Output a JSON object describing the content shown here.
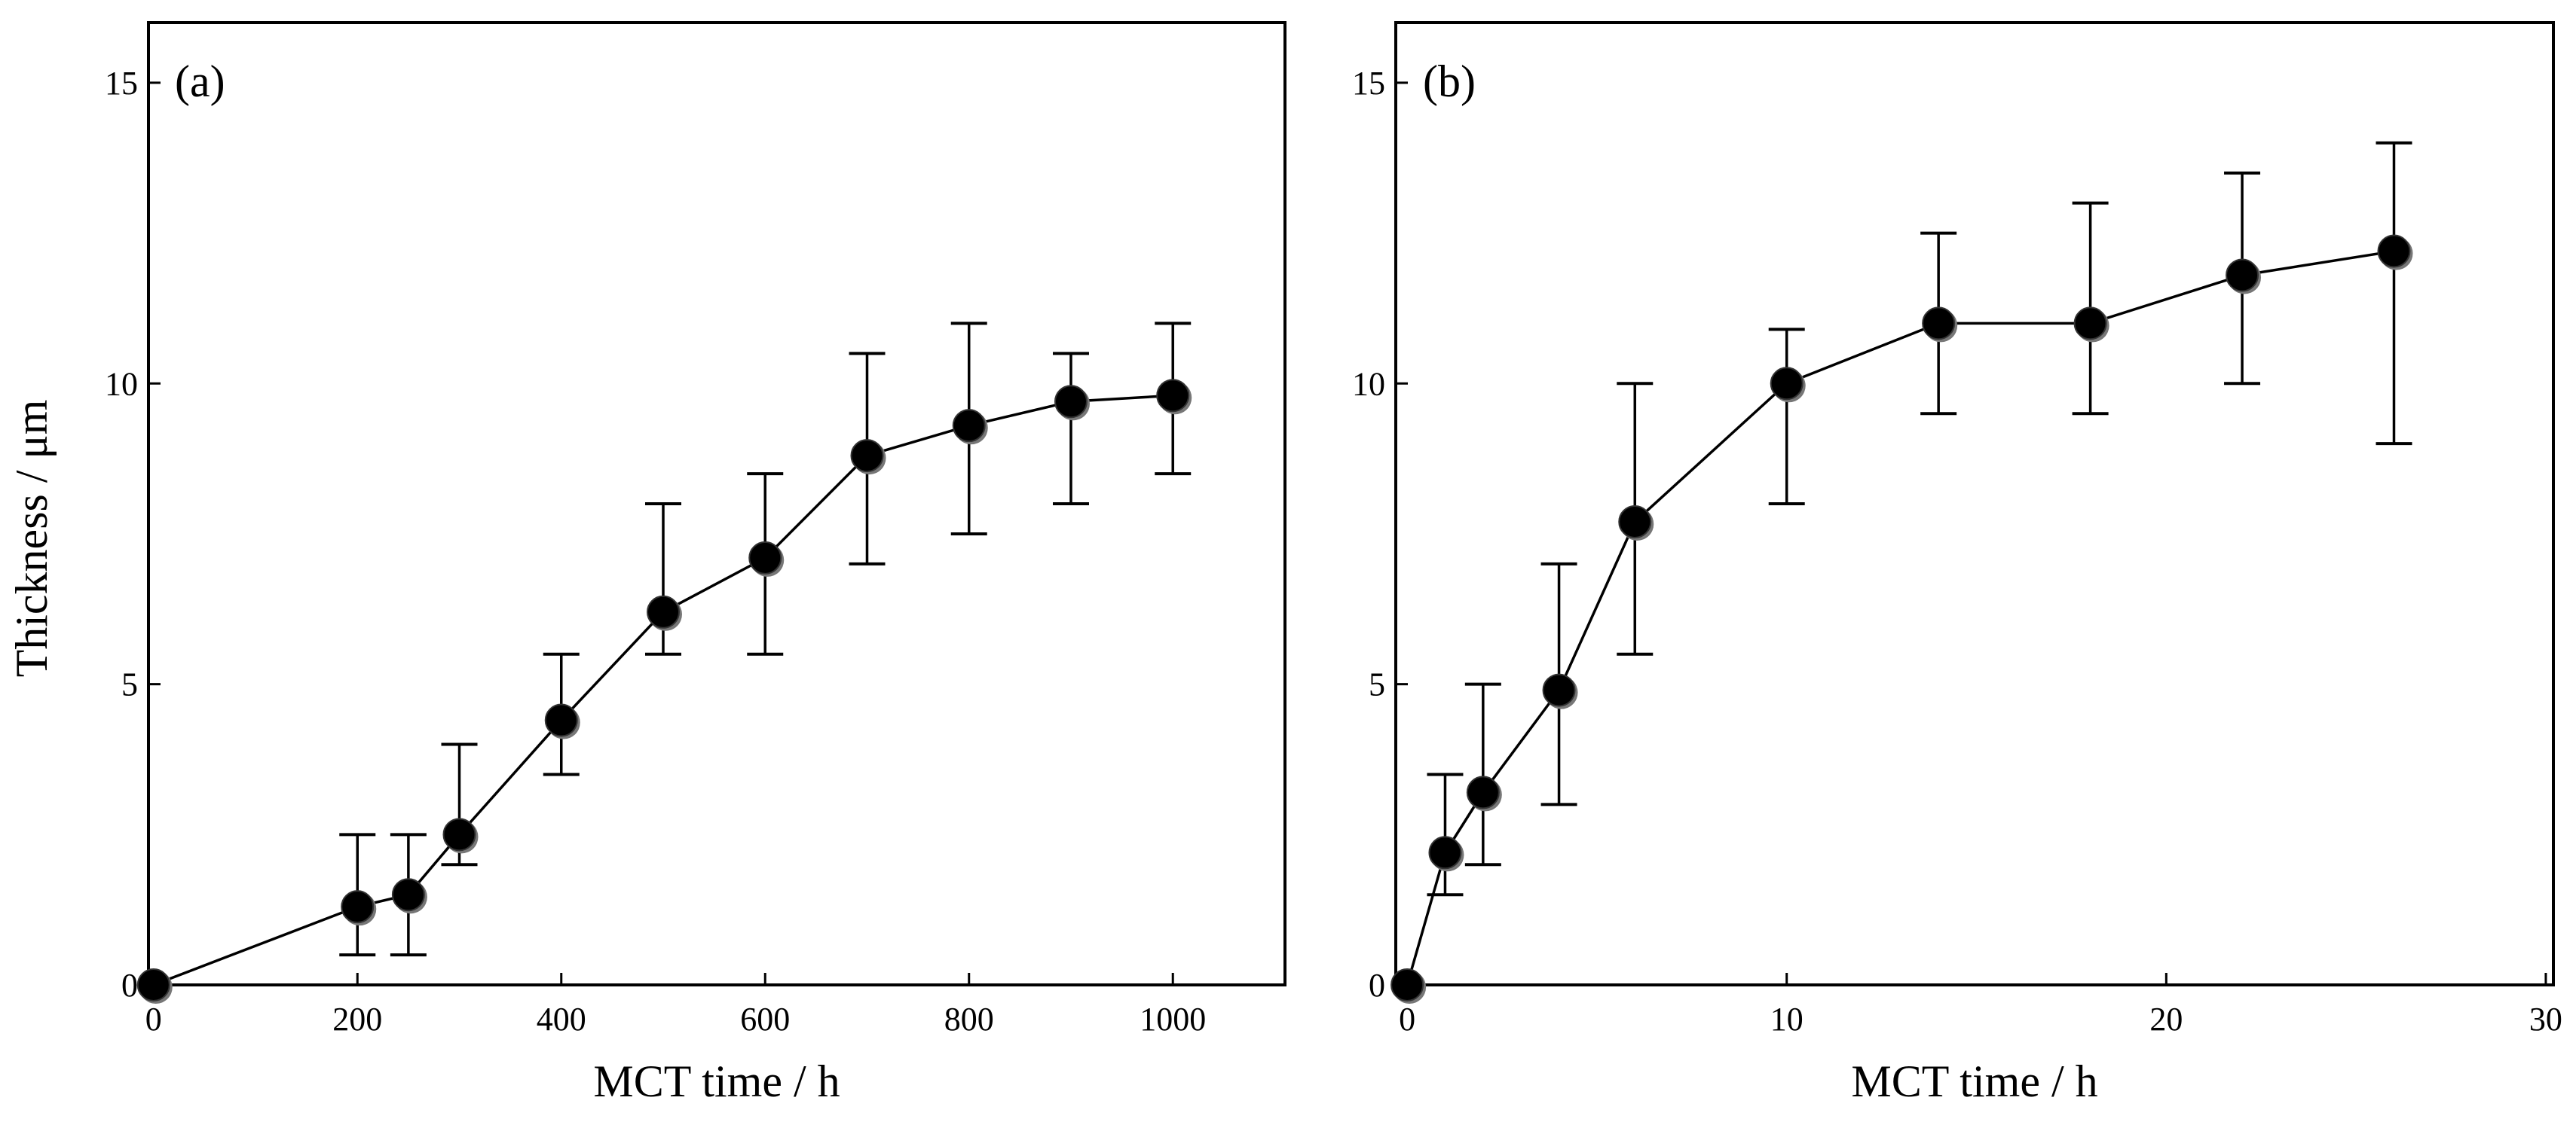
{
  "figure": {
    "ylabel": "Thickness / μm"
  },
  "chart_data": [
    {
      "type": "line",
      "panel_label": "(a)",
      "xlabel": "MCT time / h",
      "ylabel": "Thickness / μm",
      "xlim": [
        -5,
        1110
      ],
      "ylim": [
        0,
        16
      ],
      "xticks": [
        0,
        200,
        400,
        600,
        800,
        1000
      ],
      "yticks": [
        0,
        5,
        10,
        15
      ],
      "xtick_labels": [
        "0",
        "200",
        "400",
        "600",
        "800",
        "1000"
      ],
      "ytick_labels": [
        "0",
        "5",
        "10",
        "15"
      ],
      "grid": false,
      "series": [
        {
          "name": "Thickness",
          "x": [
            0,
            200,
            250,
            300,
            400,
            500,
            600,
            700,
            800,
            900,
            1000
          ],
          "y": [
            0,
            1.3,
            1.5,
            2.5,
            4.4,
            6.2,
            7.1,
            8.8,
            9.3,
            9.7,
            9.8
          ],
          "err_low": [
            0,
            0.5,
            0.5,
            2.0,
            3.5,
            5.5,
            5.5,
            7.0,
            7.5,
            8.0,
            8.5
          ],
          "err_high": [
            0,
            2.5,
            2.5,
            4.0,
            5.5,
            8.0,
            8.5,
            10.5,
            11.0,
            10.5,
            11.0
          ]
        }
      ]
    },
    {
      "type": "line",
      "panel_label": "(b)",
      "xlabel": "MCT time / h",
      "ylabel": "",
      "xlim": [
        -0.3,
        30.2
      ],
      "ylim": [
        0,
        16
      ],
      "xticks": [
        0,
        10,
        20,
        30
      ],
      "yticks": [
        0,
        5,
        10,
        15
      ],
      "xtick_labels": [
        "0",
        "10",
        "20",
        "30"
      ],
      "ytick_labels": [
        "0",
        "5",
        "10",
        "15"
      ],
      "grid": false,
      "series": [
        {
          "name": "Thickness",
          "x": [
            0,
            1,
            2,
            4,
            6,
            10,
            14,
            18,
            22,
            26
          ],
          "y": [
            0,
            2.2,
            3.2,
            4.9,
            7.7,
            10.0,
            11.0,
            11.0,
            11.8,
            12.2
          ],
          "err_low": [
            0,
            1.5,
            2.0,
            3.0,
            5.5,
            8.0,
            9.5,
            9.5,
            10.0,
            9.0
          ],
          "err_high": [
            0,
            3.5,
            5.0,
            7.0,
            10.0,
            10.9,
            12.5,
            13.0,
            13.5,
            14.0
          ]
        }
      ]
    }
  ]
}
